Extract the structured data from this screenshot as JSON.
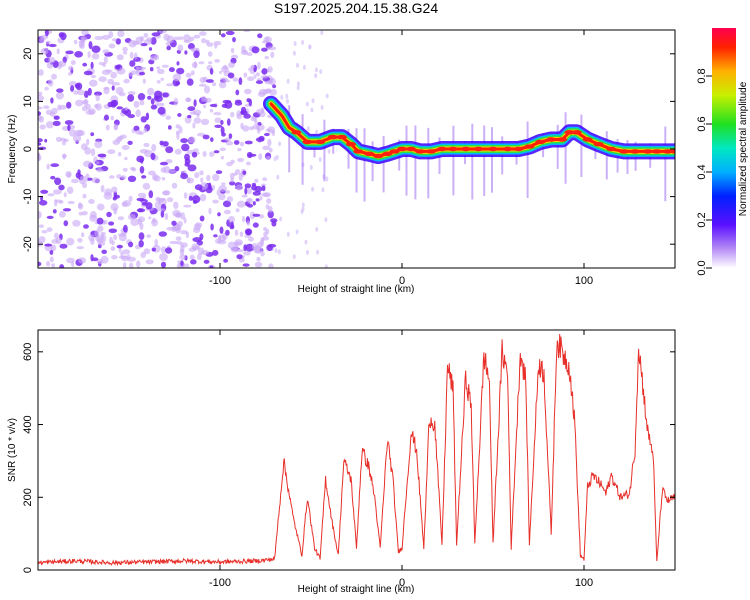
{
  "title": "S197.2025.204.15.38.G24",
  "colors": {
    "snr_line": "#e8302a",
    "frame": "#000000",
    "scatter": "#8c3cf0",
    "ridge": [
      "#3a00ff",
      "#00b8ff",
      "#30e040",
      "#ffd000",
      "#ff2000"
    ]
  },
  "chart_data": [
    {
      "type": "heatmap",
      "title": "S197.2025.204.15.38.G24",
      "xlabel": "Height of straight line (km)",
      "ylabel": "Frequency (Hz)",
      "xlim": [
        -200,
        150
      ],
      "ylim": [
        -25,
        25
      ],
      "xticks": [
        -100,
        0,
        100
      ],
      "yticks": [
        -20,
        -10,
        0,
        10,
        20
      ],
      "colorbar": {
        "label": "Normalized spectral amplitude",
        "range": [
          0,
          1
        ],
        "ticks": [
          "0.0",
          "0.2",
          "0.4",
          "0.6",
          "0.8"
        ],
        "colormap": "rainbow (purple to red)"
      },
      "noise_region_x": [
        -200,
        -70
      ],
      "ridge": {
        "x": [
          -72,
          -66,
          -62,
          -58,
          -52,
          -45,
          -38,
          -33,
          -28,
          -24,
          -18,
          -13,
          -8,
          -4,
          0,
          5,
          10,
          16,
          22,
          28,
          35,
          42,
          50,
          58,
          64,
          70,
          76,
          82,
          88,
          92,
          96,
          102,
          108,
          115,
          122,
          128,
          135,
          140,
          146,
          150
        ],
        "y": [
          9.5,
          7,
          4.5,
          3.5,
          1.5,
          1.5,
          2.5,
          2.5,
          1,
          -0.5,
          -1,
          -1.5,
          -1,
          -0.5,
          0,
          0,
          -0.5,
          -0.5,
          0,
          0,
          0,
          0,
          0,
          0,
          0,
          0.5,
          1.5,
          2,
          2,
          3.5,
          3.5,
          2,
          1,
          0,
          -0.5,
          -0.5,
          -0.5,
          -0.5,
          -0.5,
          -0.5
        ]
      }
    },
    {
      "type": "line",
      "xlabel": "Height of straight line (km)",
      "ylabel": "SNR (10 * v/v)",
      "xlim": [
        -200,
        150
      ],
      "ylim": [
        0,
        660
      ],
      "xticks": [
        -100,
        0,
        100
      ],
      "yticks": [
        0,
        200,
        400,
        600
      ],
      "series": [
        {
          "x": [
            -200,
            -180,
            -160,
            -140,
            -120,
            -100,
            -80,
            -70,
            -65,
            -60,
            -55,
            -52,
            -48,
            -45,
            -42,
            -38,
            -35,
            -32,
            -28,
            -25,
            -22,
            -18,
            -15,
            -12,
            -8,
            -5,
            -2,
            0,
            5,
            8,
            12,
            15,
            18,
            22,
            25,
            28,
            30,
            35,
            38,
            40,
            45,
            48,
            50,
            55,
            58,
            60,
            65,
            68,
            70,
            75,
            78,
            82,
            85,
            88,
            92,
            95,
            98,
            100,
            102,
            105,
            110,
            112,
            115,
            120,
            125,
            128,
            130,
            135,
            138,
            140,
            143,
            146,
            150
          ],
          "y": [
            20,
            25,
            20,
            22,
            25,
            22,
            25,
            30,
            300,
            150,
            40,
            200,
            60,
            30,
            250,
            120,
            40,
            300,
            250,
            60,
            330,
            280,
            200,
            60,
            360,
            250,
            50,
            60,
            380,
            330,
            60,
            420,
            400,
            70,
            560,
            500,
            70,
            530,
            450,
            70,
            590,
            520,
            70,
            600,
            540,
            60,
            600,
            520,
            70,
            570,
            540,
            100,
            630,
            600,
            560,
            400,
            40,
            30,
            230,
            260,
            230,
            210,
            260,
            200,
            210,
            330,
            620,
            380,
            320,
            20,
            220,
            190,
            200
          ]
        }
      ]
    }
  ]
}
